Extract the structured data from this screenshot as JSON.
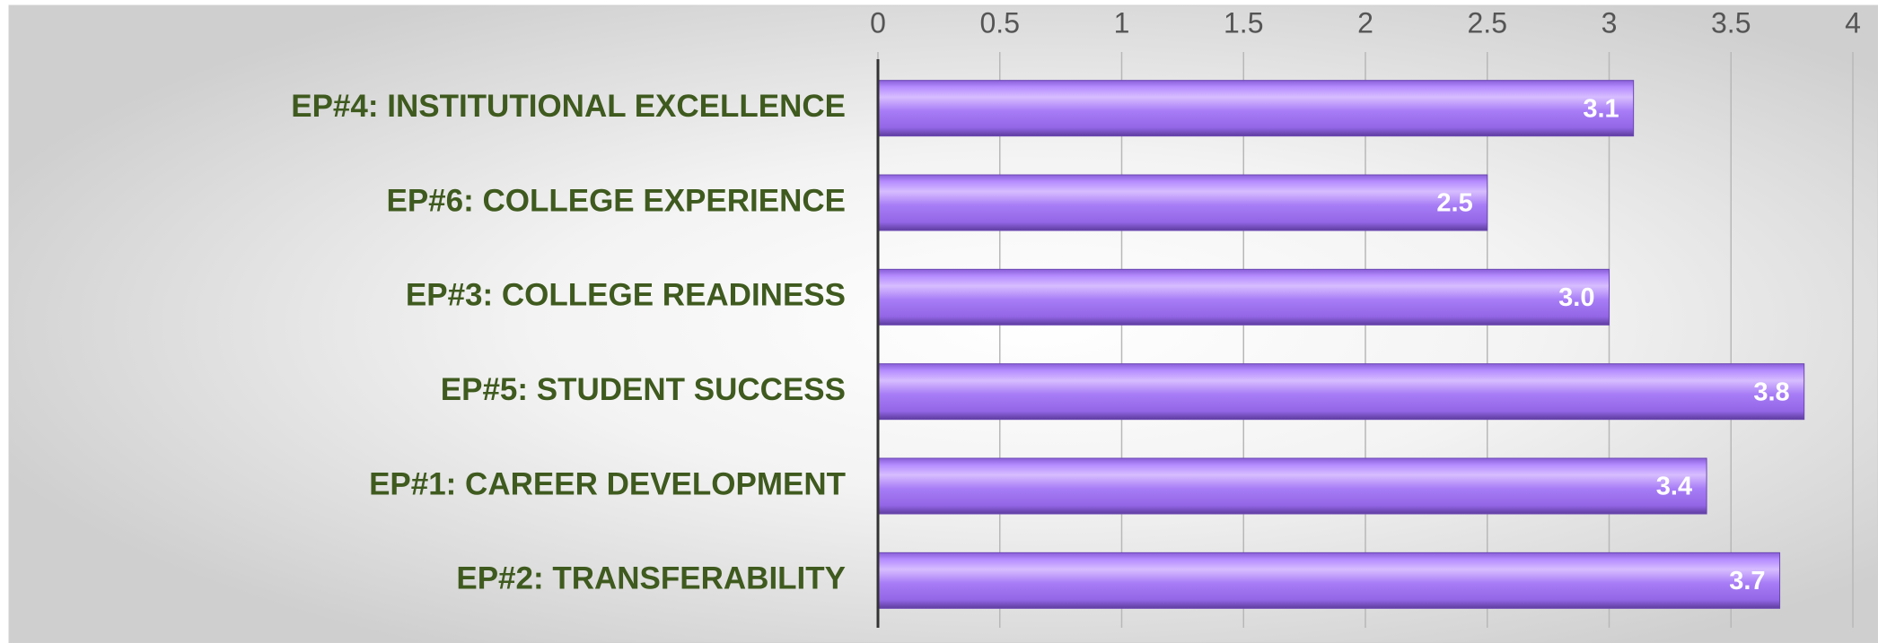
{
  "chart_data": {
    "type": "bar",
    "orientation": "horizontal",
    "categories": [
      "EP#4: INSTITUTIONAL EXCELLENCE",
      "EP#6: COLLEGE EXPERIENCE",
      "EP#3: COLLEGE READINESS",
      "EP#5: STUDENT SUCCESS",
      "EP#1: CAREER DEVELOPMENT",
      "EP#2: TRANSFERABILITY"
    ],
    "values": [
      3.1,
      2.5,
      3.0,
      3.8,
      3.4,
      3.7
    ],
    "value_labels": [
      "3.1",
      "2.5",
      "3.0",
      "3.8",
      "3.4",
      "3.7"
    ],
    "color": "#a57af5",
    "xlim": [
      0,
      4
    ],
    "xticks": [
      0,
      0.5,
      1,
      1.5,
      2,
      2.5,
      3,
      3.5,
      4
    ],
    "grid": true
  }
}
